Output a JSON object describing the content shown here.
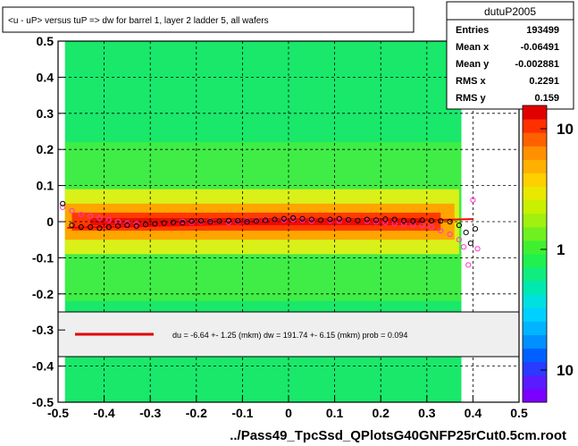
{
  "chart_data": {
    "type": "heatmap",
    "title": "<u - uP>       versus  tuP =>  dw for barrel 1, layer 2 ladder 5, all wafers",
    "xlabel": "../Pass49_TpcSsd_QPlotsG40GNFP25rCut0.5cm.root",
    "ylabel": "",
    "xlim": [
      -0.5,
      0.5
    ],
    "ylim": [
      -0.5,
      0.5
    ],
    "x_ticks": [
      "-0.5",
      "-0.4",
      "-0.3",
      "-0.2",
      "-0.1",
      "0",
      "0.1",
      "0.2",
      "0.3",
      "0.4",
      "0.5"
    ],
    "x_tick_values": [
      -0.5,
      -0.4,
      -0.3,
      -0.2,
      -0.1,
      0,
      0.1,
      0.2,
      0.3,
      0.4,
      0.5
    ],
    "y_ticks": [
      "-0.5",
      "-0.4",
      "-0.3",
      "-0.2",
      "-0.1",
      "0",
      "0.1",
      "0.2",
      "0.3",
      "0.4",
      "0.5"
    ],
    "y_tick_values": [
      -0.5,
      -0.4,
      -0.3,
      -0.2,
      -0.1,
      0,
      0.1,
      0.2,
      0.3,
      0.4,
      0.5
    ],
    "grid": true,
    "z_scale": "log",
    "z_ticks": [
      "10",
      "1",
      "10"
    ],
    "stats": {
      "name": "dutuP2005",
      "rows": [
        {
          "label": "Entries",
          "value": "193499"
        },
        {
          "label": "Mean x",
          "value": "-0.06491"
        },
        {
          "label": "Mean y",
          "value": "-0.002881"
        },
        {
          "label": "RMS x",
          "value": "0.2291"
        },
        {
          "label": "RMS y",
          "value": "0.159"
        }
      ]
    },
    "fit_legend": "du =   -6.64 +-   1.25 (mkm) dw =  191.74 +-  6.15 (mkm) prob = 0.094",
    "fit_line": {
      "x": [
        -0.48,
        0.4
      ],
      "y": [
        -0.017,
        0.007
      ],
      "color": "#ff0000"
    },
    "profile_black": {
      "x": [
        -0.49,
        -0.47,
        -0.45,
        -0.43,
        -0.41,
        -0.39,
        -0.37,
        -0.35,
        -0.33,
        -0.31,
        -0.29,
        -0.27,
        -0.25,
        -0.23,
        -0.21,
        -0.19,
        -0.17,
        -0.15,
        -0.13,
        -0.11,
        -0.09,
        -0.07,
        -0.05,
        -0.03,
        -0.01,
        0.01,
        0.03,
        0.05,
        0.07,
        0.09,
        0.11,
        0.13,
        0.15,
        0.17,
        0.19,
        0.21,
        0.23,
        0.25,
        0.27,
        0.29,
        0.31,
        0.33,
        0.35,
        0.37,
        0.385,
        0.395,
        0.405
      ],
      "y": [
        0.05,
        -0.01,
        -0.015,
        -0.015,
        -0.018,
        -0.015,
        -0.012,
        -0.01,
        -0.012,
        -0.008,
        -0.006,
        -0.004,
        -0.002,
        -0.003,
        0.001,
        0.002,
        0.0,
        0.001,
        0.003,
        0.002,
        0.0,
        0.002,
        0.004,
        0.006,
        0.008,
        0.01,
        0.008,
        0.006,
        0.004,
        0.006,
        0.008,
        0.005,
        0.003,
        0.006,
        0.004,
        0.007,
        0.006,
        0.003,
        0.002,
        0.004,
        0.003,
        0.002,
        0.0,
        -0.01,
        -0.03,
        -0.06,
        -0.02
      ]
    },
    "profile_magenta": {
      "x": [
        -0.49,
        -0.47,
        -0.45,
        -0.43,
        -0.41,
        -0.39,
        -0.37,
        -0.35,
        -0.33,
        -0.31,
        -0.29,
        -0.27,
        -0.25,
        -0.23,
        -0.21,
        -0.19,
        -0.17,
        -0.15,
        -0.13,
        -0.11,
        -0.09,
        -0.07,
        -0.05,
        -0.03,
        -0.01,
        0.01,
        0.03,
        0.05,
        0.07,
        0.09,
        0.11,
        0.13,
        0.15,
        0.17,
        0.19,
        0.21,
        0.23,
        0.25,
        0.27,
        0.29,
        0.31,
        0.33,
        0.35,
        0.37,
        0.38,
        0.39,
        0.4,
        0.41
      ],
      "y": [
        0.04,
        0.03,
        0.02,
        0.015,
        0.01,
        0.005,
        0.0,
        -0.004,
        -0.006,
        -0.008,
        -0.006,
        -0.004,
        -0.002,
        0.0,
        -0.002,
        0.0,
        0.002,
        0.0,
        -0.002,
        0.0,
        0.002,
        0.004,
        0.006,
        0.005,
        0.004,
        0.006,
        0.004,
        0.002,
        0.004,
        0.003,
        0.002,
        0.004,
        0.003,
        0.002,
        0.0,
        -0.002,
        -0.004,
        -0.006,
        -0.008,
        -0.01,
        -0.015,
        -0.025,
        -0.035,
        -0.05,
        -0.07,
        -0.12,
        0.06,
        -0.075
      ]
    }
  }
}
